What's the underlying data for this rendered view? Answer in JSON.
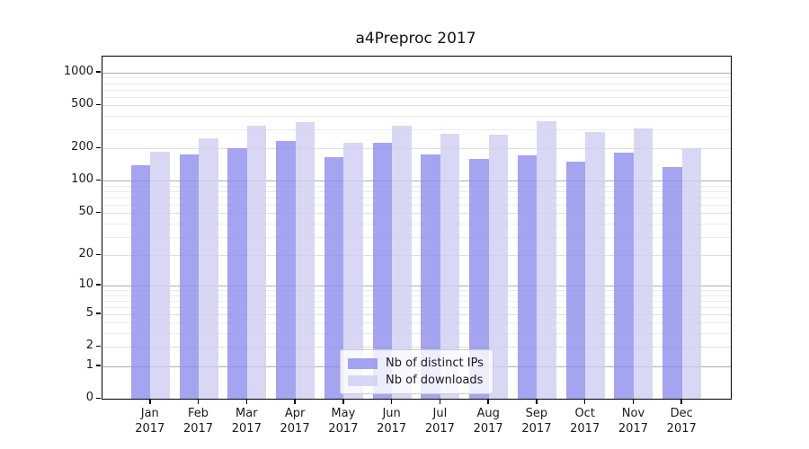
{
  "chart_data": {
    "type": "bar",
    "title": "a4Preproc 2017",
    "categories": [
      "Jan",
      "Feb",
      "Mar",
      "Apr",
      "May",
      "Jun",
      "Jul",
      "Aug",
      "Sep",
      "Oct",
      "Nov",
      "Dec"
    ],
    "category_year": "2017",
    "series": [
      {
        "name": "Nb of distinct IPs",
        "color": "#8d8dec",
        "values": [
          140,
          176,
          200,
          234,
          167,
          225,
          176,
          160,
          172,
          150,
          182,
          134
        ]
      },
      {
        "name": "Nb of downloads",
        "color": "#cecef3",
        "values": [
          185,
          248,
          324,
          348,
          227,
          322,
          274,
          266,
          355,
          284,
          306,
          203
        ]
      }
    ],
    "xlabel": "",
    "ylabel": "",
    "yscale": "symlog (log10 of 1+value)",
    "y_ticks": [
      0,
      1,
      2,
      5,
      10,
      20,
      50,
      100,
      200,
      500,
      1000
    ],
    "ylim": [
      0,
      1430
    ],
    "grid": "horizontal, major gray at powers of 10, light minors",
    "legend_position": "lower center inside plot",
    "colors": {
      "major_grid": "#b0b0b0",
      "labeled_minor_grid": "#e0e0e0",
      "minor_grid": "#ececec",
      "spine": "#000000",
      "text": "#1a1a1a",
      "background": "#ffffff"
    }
  }
}
